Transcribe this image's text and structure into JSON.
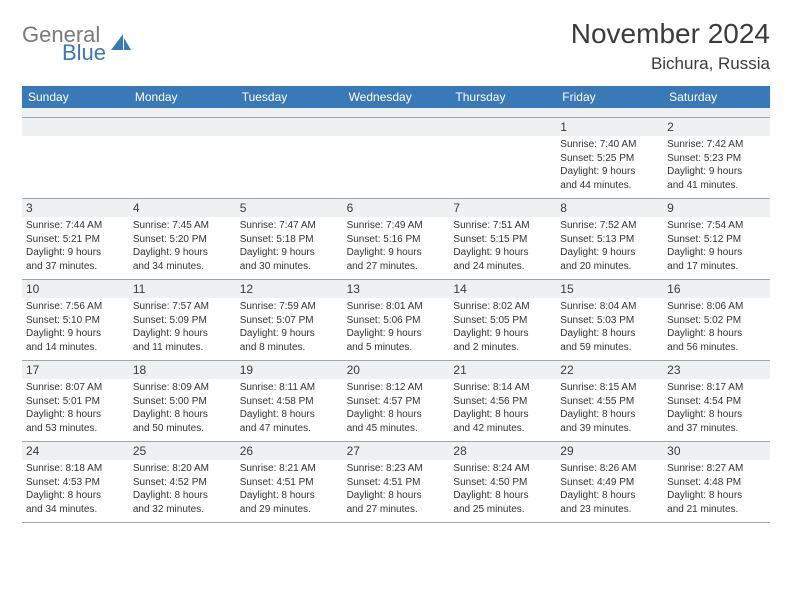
{
  "logo": {
    "word1": "General",
    "word2": "Blue"
  },
  "title": "November 2024",
  "location": "Bichura, Russia",
  "colors": {
    "header_bg": "#3a79b7",
    "header_fg": "#ffffff",
    "daynum_bg": "#eef0f2",
    "text": "#333333",
    "rule": "#9aa7b3",
    "logo_gray": "#7b7b7b",
    "logo_blue": "#3a79b7",
    "page_bg": "#ffffff"
  },
  "day_names": [
    "Sunday",
    "Monday",
    "Tuesday",
    "Wednesday",
    "Thursday",
    "Friday",
    "Saturday"
  ],
  "weeks": [
    [
      {
        "n": "",
        "sunrise": "",
        "sunset": "",
        "daylight1": "",
        "daylight2": ""
      },
      {
        "n": "",
        "sunrise": "",
        "sunset": "",
        "daylight1": "",
        "daylight2": ""
      },
      {
        "n": "",
        "sunrise": "",
        "sunset": "",
        "daylight1": "",
        "daylight2": ""
      },
      {
        "n": "",
        "sunrise": "",
        "sunset": "",
        "daylight1": "",
        "daylight2": ""
      },
      {
        "n": "",
        "sunrise": "",
        "sunset": "",
        "daylight1": "",
        "daylight2": ""
      },
      {
        "n": "1",
        "sunrise": "Sunrise: 7:40 AM",
        "sunset": "Sunset: 5:25 PM",
        "daylight1": "Daylight: 9 hours",
        "daylight2": "and 44 minutes."
      },
      {
        "n": "2",
        "sunrise": "Sunrise: 7:42 AM",
        "sunset": "Sunset: 5:23 PM",
        "daylight1": "Daylight: 9 hours",
        "daylight2": "and 41 minutes."
      }
    ],
    [
      {
        "n": "3",
        "sunrise": "Sunrise: 7:44 AM",
        "sunset": "Sunset: 5:21 PM",
        "daylight1": "Daylight: 9 hours",
        "daylight2": "and 37 minutes."
      },
      {
        "n": "4",
        "sunrise": "Sunrise: 7:45 AM",
        "sunset": "Sunset: 5:20 PM",
        "daylight1": "Daylight: 9 hours",
        "daylight2": "and 34 minutes."
      },
      {
        "n": "5",
        "sunrise": "Sunrise: 7:47 AM",
        "sunset": "Sunset: 5:18 PM",
        "daylight1": "Daylight: 9 hours",
        "daylight2": "and 30 minutes."
      },
      {
        "n": "6",
        "sunrise": "Sunrise: 7:49 AM",
        "sunset": "Sunset: 5:16 PM",
        "daylight1": "Daylight: 9 hours",
        "daylight2": "and 27 minutes."
      },
      {
        "n": "7",
        "sunrise": "Sunrise: 7:51 AM",
        "sunset": "Sunset: 5:15 PM",
        "daylight1": "Daylight: 9 hours",
        "daylight2": "and 24 minutes."
      },
      {
        "n": "8",
        "sunrise": "Sunrise: 7:52 AM",
        "sunset": "Sunset: 5:13 PM",
        "daylight1": "Daylight: 9 hours",
        "daylight2": "and 20 minutes."
      },
      {
        "n": "9",
        "sunrise": "Sunrise: 7:54 AM",
        "sunset": "Sunset: 5:12 PM",
        "daylight1": "Daylight: 9 hours",
        "daylight2": "and 17 minutes."
      }
    ],
    [
      {
        "n": "10",
        "sunrise": "Sunrise: 7:56 AM",
        "sunset": "Sunset: 5:10 PM",
        "daylight1": "Daylight: 9 hours",
        "daylight2": "and 14 minutes."
      },
      {
        "n": "11",
        "sunrise": "Sunrise: 7:57 AM",
        "sunset": "Sunset: 5:09 PM",
        "daylight1": "Daylight: 9 hours",
        "daylight2": "and 11 minutes."
      },
      {
        "n": "12",
        "sunrise": "Sunrise: 7:59 AM",
        "sunset": "Sunset: 5:07 PM",
        "daylight1": "Daylight: 9 hours",
        "daylight2": "and 8 minutes."
      },
      {
        "n": "13",
        "sunrise": "Sunrise: 8:01 AM",
        "sunset": "Sunset: 5:06 PM",
        "daylight1": "Daylight: 9 hours",
        "daylight2": "and 5 minutes."
      },
      {
        "n": "14",
        "sunrise": "Sunrise: 8:02 AM",
        "sunset": "Sunset: 5:05 PM",
        "daylight1": "Daylight: 9 hours",
        "daylight2": "and 2 minutes."
      },
      {
        "n": "15",
        "sunrise": "Sunrise: 8:04 AM",
        "sunset": "Sunset: 5:03 PM",
        "daylight1": "Daylight: 8 hours",
        "daylight2": "and 59 minutes."
      },
      {
        "n": "16",
        "sunrise": "Sunrise: 8:06 AM",
        "sunset": "Sunset: 5:02 PM",
        "daylight1": "Daylight: 8 hours",
        "daylight2": "and 56 minutes."
      }
    ],
    [
      {
        "n": "17",
        "sunrise": "Sunrise: 8:07 AM",
        "sunset": "Sunset: 5:01 PM",
        "daylight1": "Daylight: 8 hours",
        "daylight2": "and 53 minutes."
      },
      {
        "n": "18",
        "sunrise": "Sunrise: 8:09 AM",
        "sunset": "Sunset: 5:00 PM",
        "daylight1": "Daylight: 8 hours",
        "daylight2": "and 50 minutes."
      },
      {
        "n": "19",
        "sunrise": "Sunrise: 8:11 AM",
        "sunset": "Sunset: 4:58 PM",
        "daylight1": "Daylight: 8 hours",
        "daylight2": "and 47 minutes."
      },
      {
        "n": "20",
        "sunrise": "Sunrise: 8:12 AM",
        "sunset": "Sunset: 4:57 PM",
        "daylight1": "Daylight: 8 hours",
        "daylight2": "and 45 minutes."
      },
      {
        "n": "21",
        "sunrise": "Sunrise: 8:14 AM",
        "sunset": "Sunset: 4:56 PM",
        "daylight1": "Daylight: 8 hours",
        "daylight2": "and 42 minutes."
      },
      {
        "n": "22",
        "sunrise": "Sunrise: 8:15 AM",
        "sunset": "Sunset: 4:55 PM",
        "daylight1": "Daylight: 8 hours",
        "daylight2": "and 39 minutes."
      },
      {
        "n": "23",
        "sunrise": "Sunrise: 8:17 AM",
        "sunset": "Sunset: 4:54 PM",
        "daylight1": "Daylight: 8 hours",
        "daylight2": "and 37 minutes."
      }
    ],
    [
      {
        "n": "24",
        "sunrise": "Sunrise: 8:18 AM",
        "sunset": "Sunset: 4:53 PM",
        "daylight1": "Daylight: 8 hours",
        "daylight2": "and 34 minutes."
      },
      {
        "n": "25",
        "sunrise": "Sunrise: 8:20 AM",
        "sunset": "Sunset: 4:52 PM",
        "daylight1": "Daylight: 8 hours",
        "daylight2": "and 32 minutes."
      },
      {
        "n": "26",
        "sunrise": "Sunrise: 8:21 AM",
        "sunset": "Sunset: 4:51 PM",
        "daylight1": "Daylight: 8 hours",
        "daylight2": "and 29 minutes."
      },
      {
        "n": "27",
        "sunrise": "Sunrise: 8:23 AM",
        "sunset": "Sunset: 4:51 PM",
        "daylight1": "Daylight: 8 hours",
        "daylight2": "and 27 minutes."
      },
      {
        "n": "28",
        "sunrise": "Sunrise: 8:24 AM",
        "sunset": "Sunset: 4:50 PM",
        "daylight1": "Daylight: 8 hours",
        "daylight2": "and 25 minutes."
      },
      {
        "n": "29",
        "sunrise": "Sunrise: 8:26 AM",
        "sunset": "Sunset: 4:49 PM",
        "daylight1": "Daylight: 8 hours",
        "daylight2": "and 23 minutes."
      },
      {
        "n": "30",
        "sunrise": "Sunrise: 8:27 AM",
        "sunset": "Sunset: 4:48 PM",
        "daylight1": "Daylight: 8 hours",
        "daylight2": "and 21 minutes."
      }
    ]
  ]
}
